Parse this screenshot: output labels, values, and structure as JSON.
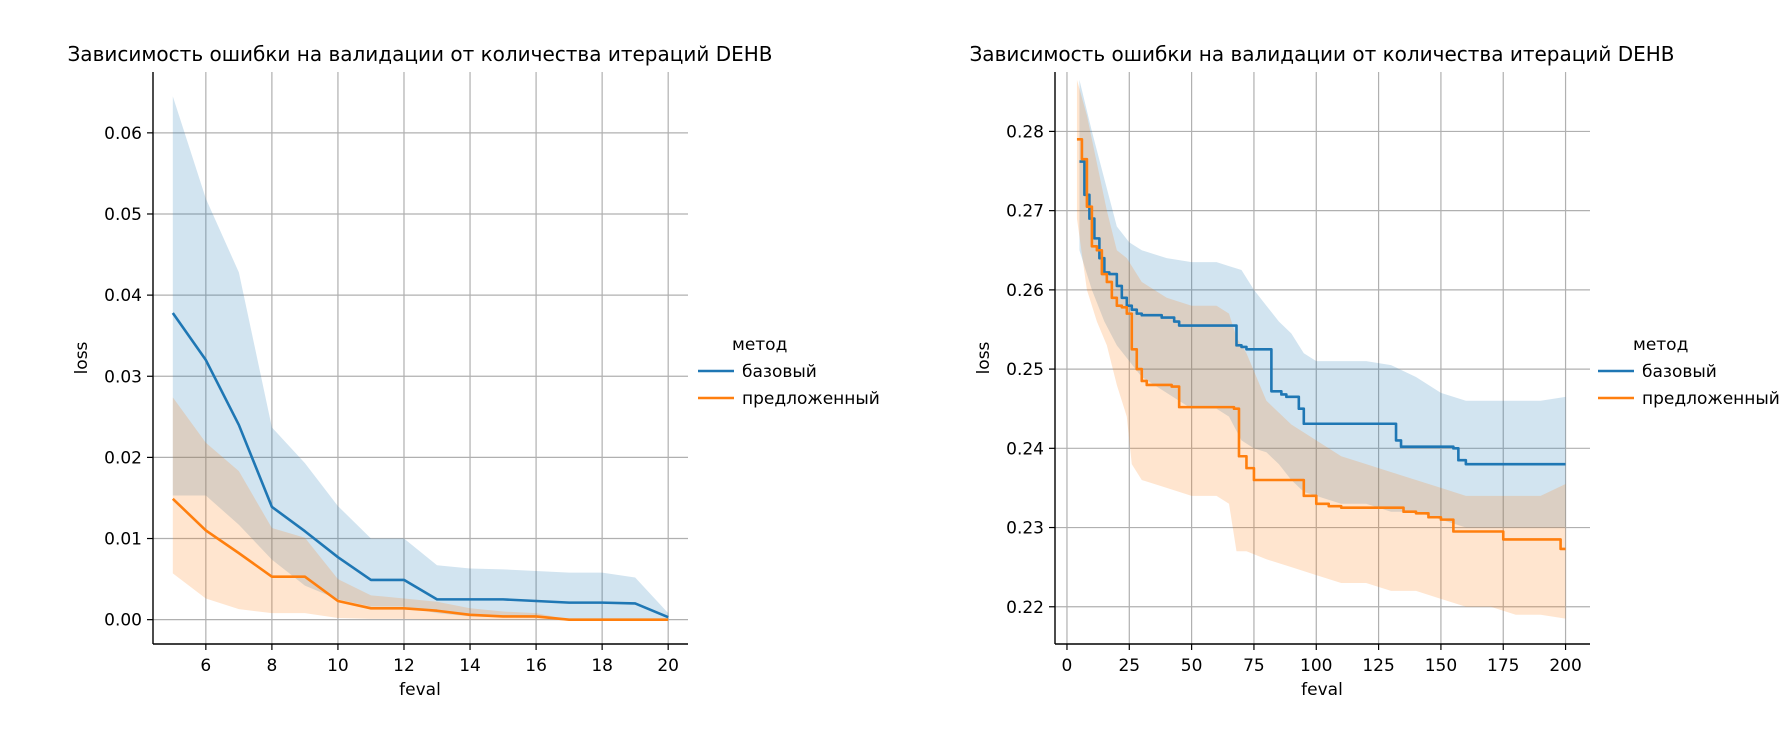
{
  "colors": {
    "base": "#1f77b4",
    "proposed": "#ff7f0e",
    "grid": "#b0b0b0"
  },
  "legend": {
    "title": "метод",
    "items": [
      {
        "key": "base",
        "label": "базовый"
      },
      {
        "key": "proposed",
        "label": "предложенный"
      }
    ]
  },
  "chart_data": [
    {
      "type": "line",
      "title": "Зависимость ошибки на валидации от количества итераций DEHB",
      "xlabel": "feval",
      "ylabel": "loss",
      "xlim": [
        4.4,
        20.6
      ],
      "ylim": [
        -0.003,
        0.0675
      ],
      "xticks": [
        6,
        8,
        10,
        12,
        14,
        16,
        18,
        20
      ],
      "yticks": [
        0.0,
        0.01,
        0.02,
        0.03,
        0.04,
        0.05,
        0.06
      ],
      "ytick_decimals": 2,
      "grid": true,
      "legend_position": "right",
      "series": [
        {
          "name": "базовый",
          "x": [
            5,
            6,
            7,
            8,
            9,
            10,
            11,
            12,
            13,
            14,
            15,
            16,
            17,
            18,
            19,
            20
          ],
          "y": [
            0.0378,
            0.032,
            0.024,
            0.0139,
            0.0109,
            0.0077,
            0.0049,
            0.0049,
            0.0025,
            0.0025,
            0.0025,
            0.0023,
            0.0021,
            0.0021,
            0.002,
            0.0003
          ],
          "band_low": [
            0.0153,
            0.0153,
            0.0117,
            0.0074,
            0.0042,
            0.0025,
            0.0016,
            0.0016,
            0.0008,
            0.0004,
            0.0003,
            0.0002,
            0.0001,
            0.0001,
            0.0001,
            0.0001
          ],
          "band_high": [
            0.0645,
            0.0519,
            0.0428,
            0.0237,
            0.0193,
            0.014,
            0.01,
            0.01,
            0.0067,
            0.0063,
            0.0062,
            0.006,
            0.0058,
            0.0058,
            0.0052,
            0.0008
          ]
        },
        {
          "name": "предложенный",
          "x": [
            5,
            6,
            7,
            8,
            9,
            10,
            11,
            12,
            13,
            14,
            15,
            16,
            17,
            18,
            19,
            20
          ],
          "y": [
            0.0149,
            0.011,
            0.0082,
            0.0053,
            0.0053,
            0.0023,
            0.0014,
            0.0014,
            0.0011,
            0.0006,
            0.0004,
            0.0004,
            0.0,
            0.0,
            0.0,
            0.0
          ],
          "band_low": [
            0.0057,
            0.0026,
            0.0013,
            0.0008,
            0.0008,
            0.0002,
            0.0001,
            0.0001,
            0.0,
            0.0,
            0.0,
            0.0,
            0.0,
            0.0,
            0.0,
            0.0
          ],
          "band_high": [
            0.0274,
            0.0218,
            0.0183,
            0.0113,
            0.0101,
            0.005,
            0.003,
            0.0026,
            0.0022,
            0.0014,
            0.001,
            0.0008,
            0.0,
            0.0,
            0.0,
            0.0
          ]
        }
      ]
    },
    {
      "type": "line",
      "title": "Зависимость ошибки на валидации от количества итераций DEHB",
      "xlabel": "feval",
      "ylabel": "loss",
      "xlim": [
        -4.8,
        209.8
      ],
      "ylim": [
        0.2153,
        0.2875
      ],
      "xticks": [
        0,
        25,
        50,
        75,
        100,
        125,
        150,
        175,
        200
      ],
      "yticks": [
        0.22,
        0.23,
        0.24,
        0.25,
        0.26,
        0.27,
        0.28
      ],
      "ytick_decimals": 2,
      "grid": true,
      "legend_position": "right",
      "series": [
        {
          "name": "базовый",
          "step": true,
          "x": [
            5,
            7,
            9,
            11,
            13,
            15,
            17,
            20,
            22,
            24,
            26,
            28,
            30,
            33,
            38,
            43,
            45,
            60,
            66,
            68,
            70,
            72,
            80,
            82,
            86,
            88,
            93,
            95,
            110,
            130,
            132,
            134,
            150,
            155,
            157,
            160,
            170,
            200
          ],
          "y": [
            0.2762,
            0.272,
            0.269,
            0.2665,
            0.264,
            0.2622,
            0.262,
            0.2605,
            0.259,
            0.258,
            0.2575,
            0.257,
            0.2568,
            0.2568,
            0.2565,
            0.256,
            0.2555,
            0.2555,
            0.2555,
            0.253,
            0.2528,
            0.2525,
            0.2525,
            0.2472,
            0.2468,
            0.2465,
            0.245,
            0.2431,
            0.2431,
            0.2431,
            0.241,
            0.2402,
            0.2402,
            0.24,
            0.2385,
            0.238,
            0.238,
            0.238
          ],
          "band_x": [
            5,
            10,
            15,
            20,
            25,
            30,
            40,
            50,
            60,
            65,
            70,
            75,
            80,
            85,
            90,
            95,
            100,
            110,
            120,
            130,
            140,
            150,
            160,
            170,
            180,
            190,
            200
          ],
          "band_low": [
            0.265,
            0.26,
            0.256,
            0.253,
            0.251,
            0.249,
            0.247,
            0.245,
            0.245,
            0.244,
            0.241,
            0.24,
            0.2395,
            0.238,
            0.236,
            0.2345,
            0.234,
            0.233,
            0.233,
            0.232,
            0.232,
            0.231,
            0.23,
            0.23,
            0.23,
            0.23,
            0.23
          ],
          "band_high": [
            0.2865,
            0.28,
            0.274,
            0.268,
            0.266,
            0.265,
            0.264,
            0.2635,
            0.2635,
            0.263,
            0.2625,
            0.26,
            0.258,
            0.256,
            0.2545,
            0.252,
            0.251,
            0.251,
            0.251,
            0.2505,
            0.249,
            0.247,
            0.246,
            0.246,
            0.246,
            0.246,
            0.2465
          ]
        },
        {
          "name": "предложенный",
          "step": true,
          "x": [
            4,
            6,
            8,
            10,
            12,
            14,
            16,
            18,
            20,
            22,
            24,
            26,
            28,
            30,
            32,
            42,
            45,
            65,
            67,
            69,
            72,
            75,
            93,
            95,
            100,
            105,
            110,
            130,
            135,
            140,
            145,
            150,
            155,
            170,
            175,
            180,
            198,
            200
          ],
          "y": [
            0.279,
            0.2765,
            0.2705,
            0.2655,
            0.265,
            0.262,
            0.261,
            0.259,
            0.258,
            0.2578,
            0.257,
            0.2525,
            0.25,
            0.2485,
            0.248,
            0.2478,
            0.2452,
            0.2452,
            0.245,
            0.239,
            0.2375,
            0.236,
            0.236,
            0.234,
            0.233,
            0.2327,
            0.2325,
            0.2325,
            0.232,
            0.2318,
            0.2313,
            0.231,
            0.2295,
            0.2295,
            0.2285,
            0.2285,
            0.2273,
            0.2273
          ],
          "band_x": [
            4,
            8,
            12,
            16,
            20,
            24,
            26,
            30,
            40,
            50,
            60,
            65,
            68,
            72,
            80,
            90,
            100,
            110,
            120,
            130,
            140,
            150,
            160,
            170,
            180,
            190,
            200
          ],
          "band_low": [
            0.269,
            0.26,
            0.256,
            0.253,
            0.248,
            0.244,
            0.238,
            0.236,
            0.235,
            0.234,
            0.234,
            0.233,
            0.227,
            0.227,
            0.226,
            0.225,
            0.224,
            0.223,
            0.223,
            0.222,
            0.222,
            0.221,
            0.22,
            0.22,
            0.219,
            0.219,
            0.2185
          ],
          "band_high": [
            0.2865,
            0.282,
            0.276,
            0.27,
            0.265,
            0.264,
            0.263,
            0.261,
            0.259,
            0.258,
            0.258,
            0.257,
            0.254,
            0.252,
            0.246,
            0.243,
            0.241,
            0.239,
            0.238,
            0.237,
            0.236,
            0.235,
            0.234,
            0.234,
            0.234,
            0.234,
            0.2355
          ]
        }
      ]
    }
  ]
}
